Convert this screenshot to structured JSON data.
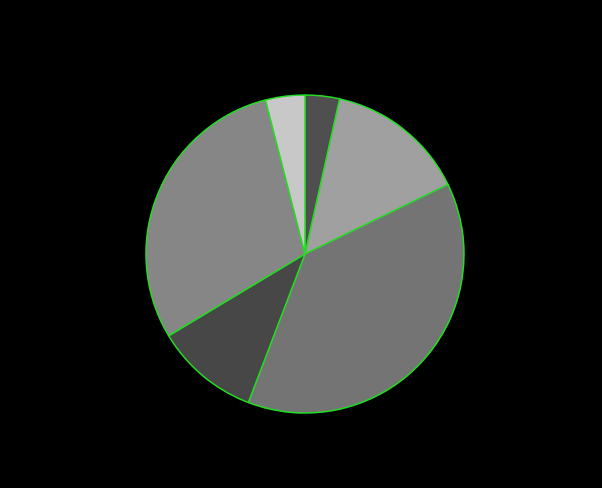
{
  "chart_data": {
    "type": "pie",
    "title": "",
    "start_angle_deg": 90,
    "direction": "clockwise",
    "slice_edge_color": "#22dd22",
    "background_color": "#000000",
    "slices": [
      {
        "value": 3.5,
        "color": "#4f4f4f"
      },
      {
        "value": 14.3,
        "color": "#a0a0a0"
      },
      {
        "value": 38.0,
        "color": "#747474"
      },
      {
        "value": 10.6,
        "color": "#474747"
      },
      {
        "value": 29.6,
        "color": "#868686"
      },
      {
        "value": 4.0,
        "color": "#c8c8c8"
      }
    ]
  }
}
